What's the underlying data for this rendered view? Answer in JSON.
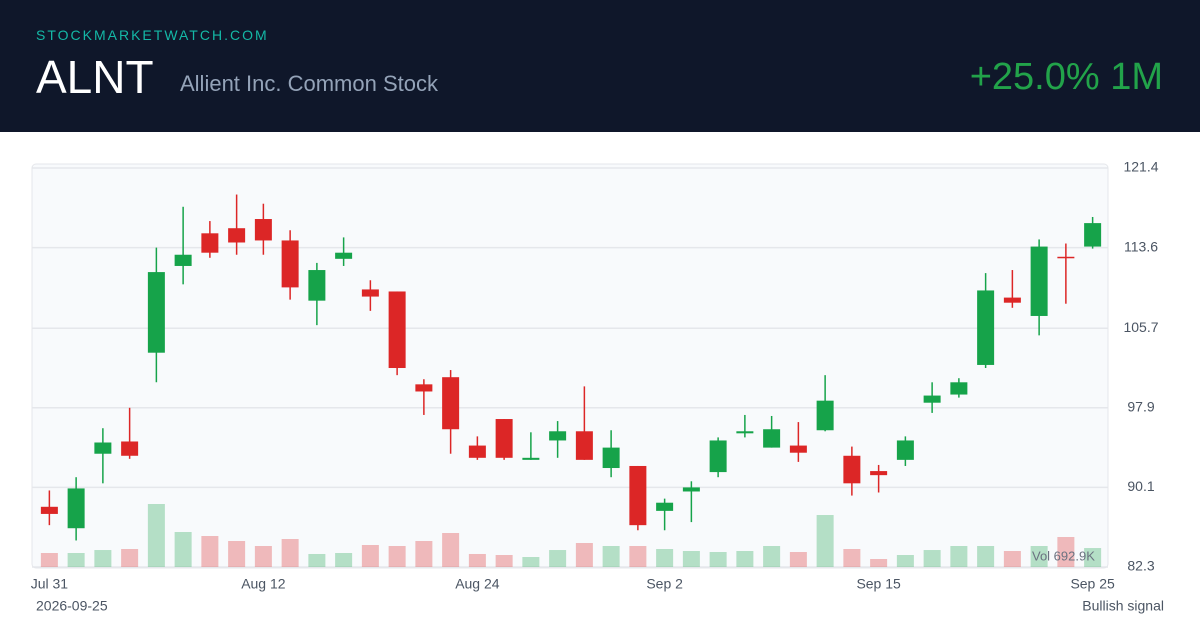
{
  "header": {
    "site": "STOCKMARKETWATCH.COM",
    "ticker": "ALNT",
    "company": "Allient Inc. Common Stock",
    "change": "+25.0% 1M"
  },
  "footer": {
    "date": "2026-09-25",
    "signal": "Bullish signal"
  },
  "chart_data": {
    "type": "candlestick",
    "categories": [
      "Jul 31",
      null,
      null,
      null,
      null,
      null,
      null,
      null,
      "Aug 12",
      null,
      null,
      null,
      null,
      null,
      null,
      null,
      "Aug 24",
      null,
      null,
      null,
      null,
      null,
      null,
      "Sep 2",
      null,
      null,
      null,
      null,
      null,
      null,
      null,
      "Sep 15",
      null,
      null,
      null,
      null,
      null,
      null,
      null,
      "Sep 25"
    ],
    "open": [
      88.2,
      86.1,
      93.4,
      94.6,
      103.3,
      111.8,
      115.0,
      115.5,
      116.4,
      114.3,
      108.4,
      112.5,
      109.5,
      109.3,
      100.2,
      100.9,
      94.2,
      96.8,
      92.8,
      94.7,
      95.6,
      92.0,
      92.2,
      87.8,
      89.7,
      91.6,
      95.4,
      94.0,
      94.2,
      95.7,
      93.2,
      91.7,
      92.8,
      98.4,
      99.2,
      102.1,
      108.7,
      106.9,
      112.7,
      113.7
    ],
    "high": [
      89.8,
      91.1,
      95.9,
      97.9,
      113.6,
      117.6,
      116.2,
      118.8,
      117.9,
      115.3,
      112.1,
      114.6,
      110.4,
      109.3,
      100.7,
      101.6,
      95.1,
      96.8,
      95.5,
      96.6,
      100.0,
      95.7,
      92.2,
      89.0,
      90.7,
      95.0,
      97.2,
      97.1,
      96.5,
      101.1,
      94.1,
      92.3,
      95.1,
      100.4,
      100.8,
      111.1,
      111.4,
      114.4,
      114.0,
      116.6
    ],
    "low": [
      86.4,
      84.9,
      90.5,
      92.9,
      100.4,
      110.0,
      112.6,
      112.9,
      112.9,
      108.5,
      106.0,
      111.8,
      107.4,
      101.1,
      97.2,
      93.4,
      92.8,
      92.8,
      92.8,
      93.0,
      92.8,
      91.1,
      85.9,
      85.9,
      86.7,
      91.1,
      95.0,
      94.0,
      92.6,
      95.6,
      89.3,
      89.6,
      92.2,
      97.4,
      98.9,
      101.8,
      107.7,
      105.0,
      108.1,
      113.5
    ],
    "close": [
      87.5,
      90.0,
      94.5,
      93.2,
      111.2,
      112.9,
      113.1,
      114.1,
      114.3,
      109.7,
      111.4,
      113.1,
      108.8,
      101.8,
      99.5,
      95.8,
      93.0,
      93.0,
      93.0,
      95.6,
      92.8,
      94.0,
      86.4,
      88.6,
      90.1,
      94.7,
      95.6,
      95.8,
      93.5,
      98.6,
      90.5,
      91.3,
      94.7,
      99.1,
      100.4,
      109.4,
      108.2,
      113.7,
      112.6,
      116.0
    ],
    "volume": [
      511,
      511,
      620,
      657,
      2300,
      1278,
      1132,
      949,
      767,
      1022,
      475,
      511,
      803,
      767,
      949,
      1241,
      475,
      438,
      365,
      620,
      876,
      767,
      767,
      657,
      584,
      548,
      584,
      767,
      548,
      1898,
      657,
      292,
      438,
      620,
      767,
      767,
      584,
      767,
      1095,
      692.9
    ],
    "volume_label": "Vol 692.9K",
    "up_color": "#16a34a",
    "down_color": "#dc2626",
    "ylim": [
      82.3,
      121.4
    ],
    "yticks": [
      82.3,
      90.1,
      97.9,
      105.7,
      113.6,
      121.4
    ],
    "grid": true
  }
}
